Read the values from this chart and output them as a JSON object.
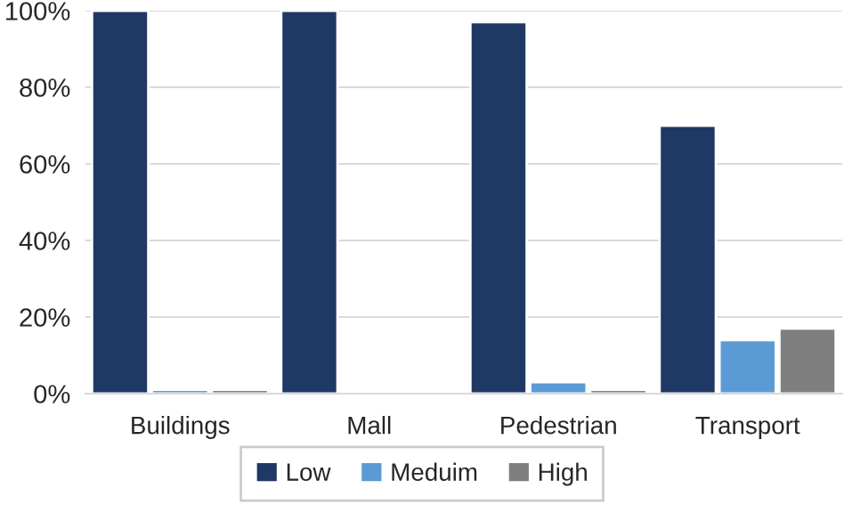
{
  "chart_data": {
    "type": "bar",
    "categories": [
      "Buildings",
      "Mall",
      "Pedestrian",
      "Transport"
    ],
    "series": [
      {
        "name": "Low",
        "color": "#1f3864",
        "values": [
          100,
          100,
          97,
          70
        ]
      },
      {
        "name": "Meduim",
        "color": "#5b9bd5",
        "values": [
          1,
          null,
          3,
          14
        ]
      },
      {
        "name": "High",
        "color": "#7f7f7f",
        "values": [
          1,
          null,
          1,
          17
        ]
      }
    ],
    "ylim": [
      0,
      100
    ],
    "yticks": [
      {
        "value": 0,
        "label": "0%"
      },
      {
        "value": 20,
        "label": "20%"
      },
      {
        "value": 40,
        "label": "40%"
      },
      {
        "value": 60,
        "label": "60%"
      },
      {
        "value": 80,
        "label": "80%"
      },
      {
        "value": 100,
        "label": "100%"
      }
    ],
    "grid": "y",
    "legend": "bottom"
  }
}
